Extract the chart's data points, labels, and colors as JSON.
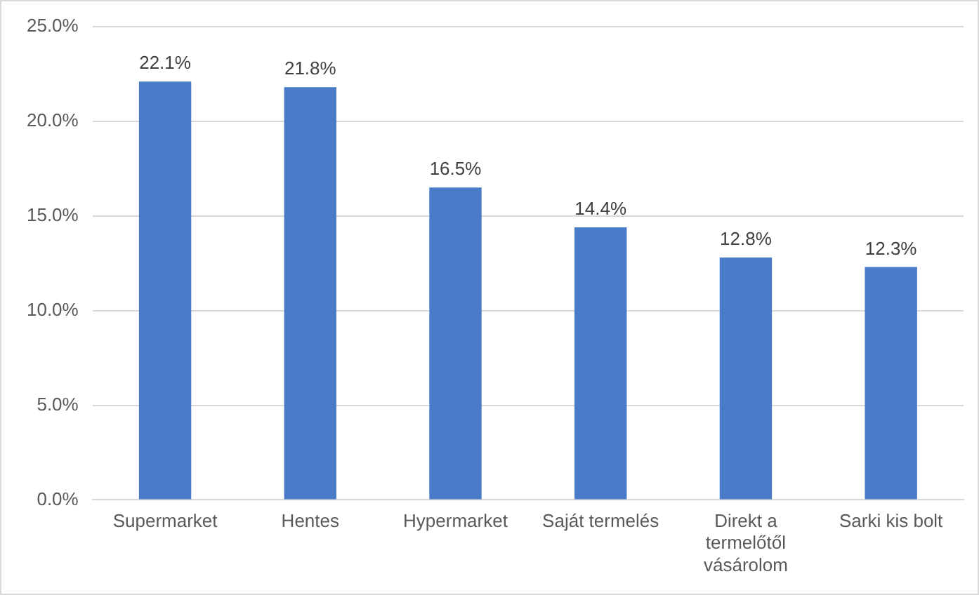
{
  "chart_data": {
    "type": "bar",
    "categories": [
      "Supermarket",
      "Hentes",
      "Hypermarket",
      "Saját termelés",
      "Direkt a termelőtől vásárolom",
      "Sarki kis bolt"
    ],
    "values": [
      22.1,
      21.8,
      16.5,
      14.4,
      12.8,
      12.3
    ],
    "value_labels": [
      "22.1%",
      "21.8%",
      "16.5%",
      "14.4%",
      "12.8%",
      "12.3%"
    ],
    "color": "#4a7bc9",
    "ylim": [
      0,
      25
    ],
    "yticks": [
      {
        "value": 0,
        "label": "0.0%"
      },
      {
        "value": 5,
        "label": "5.0%"
      },
      {
        "value": 10,
        "label": "10.0%"
      },
      {
        "value": 15,
        "label": "15.0%"
      },
      {
        "value": 20,
        "label": "20.0%"
      },
      {
        "value": 25,
        "label": "25.0%"
      }
    ],
    "grid": "y",
    "legend": false
  }
}
